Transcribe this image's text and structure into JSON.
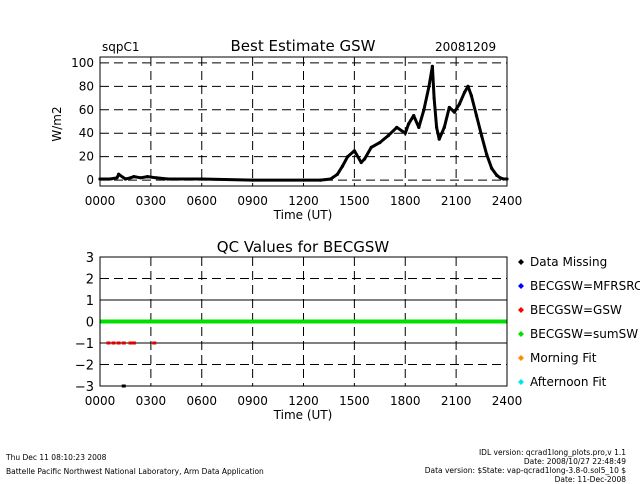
{
  "header": {
    "site": "sqpC1",
    "title": "Best Estimate GSW",
    "date": "20081209"
  },
  "chart_data": [
    {
      "type": "line",
      "title": "Best Estimate GSW",
      "xlabel": "Time (UT)",
      "ylabel": "W/m2",
      "xlim": [
        0,
        2400
      ],
      "ylim": [
        -5,
        105
      ],
      "xticks": [
        "0000",
        "0300",
        "0600",
        "0900",
        "1200",
        "1500",
        "1800",
        "2100",
        "2400"
      ],
      "yticks": [
        "0",
        "20",
        "40",
        "60",
        "80",
        "100"
      ],
      "grid": true,
      "series": [
        {
          "color": "#000000",
          "x": [
            0,
            60,
            100,
            110,
            150,
            180,
            200,
            240,
            280,
            330,
            400,
            600,
            900,
            1200,
            1300,
            1360,
            1400,
            1430,
            1460,
            1500,
            1540,
            1560,
            1600,
            1650,
            1700,
            1750,
            1800,
            1820,
            1850,
            1880,
            1910,
            1940,
            1960,
            1970,
            1985,
            2000,
            2030,
            2060,
            2090,
            2120,
            2150,
            2170,
            2190,
            2220,
            2250,
            2280,
            2310,
            2340,
            2360,
            2380,
            2400
          ],
          "y": [
            1,
            1,
            2,
            5,
            1,
            2,
            3,
            2,
            3,
            2,
            1,
            1,
            0,
            0,
            0,
            1,
            5,
            12,
            20,
            25,
            15,
            18,
            28,
            32,
            38,
            45,
            40,
            48,
            55,
            45,
            60,
            80,
            97,
            70,
            45,
            35,
            45,
            62,
            58,
            65,
            75,
            80,
            72,
            55,
            38,
            22,
            10,
            4,
            2,
            1,
            1
          ]
        }
      ]
    },
    {
      "type": "scatter",
      "title": "QC Values for BECGSW",
      "xlabel": "Time (UT)",
      "xlim": [
        0,
        2400
      ],
      "ylim": [
        -3,
        3
      ],
      "xticks": [
        "0000",
        "0300",
        "0600",
        "0900",
        "1200",
        "1500",
        "1800",
        "2100",
        "2400"
      ],
      "yticks": [
        "3",
        "2",
        "1",
        "0",
        "−1",
        "−2",
        "−3"
      ],
      "grid": true,
      "series": [
        {
          "name": "BECGSW=sumSW",
          "color": "#00e000",
          "x": [
            0,
            2400
          ],
          "y": [
            0,
            0
          ]
        },
        {
          "name": "BECGSW=GSW",
          "color": "#e00000",
          "x": [
            50,
            80,
            110,
            140,
            180,
            200,
            320
          ],
          "y": [
            -1,
            -1,
            -1,
            -1,
            -1,
            -1,
            -1
          ]
        },
        {
          "name": "Data Missing",
          "color": "#000000",
          "x": [
            140
          ],
          "y": [
            -3
          ]
        }
      ],
      "legend": {
        "placement": "right",
        "items": [
          {
            "label": "Data Missing",
            "color": "#000000"
          },
          {
            "label": "BECGSW=MFRSRC",
            "color": "#0000ff"
          },
          {
            "label": "BECGSW=GSW",
            "color": "#ff0000"
          },
          {
            "label": "BECGSW=sumSW",
            "color": "#00e000"
          },
          {
            "label": "Morning Fit",
            "color": "#ff8c00"
          },
          {
            "label": "Afternoon Fit",
            "color": "#00e5e5"
          }
        ]
      }
    }
  ],
  "footer": {
    "timestamp": "Thu Dec 11 08:10:23 2008",
    "lab": "Battelle Pacific Northwest National Laboratory, Arm Data Application",
    "idl_version": "IDL version: qcrad1long_plots.pro,v 1.1",
    "idl_date": "Date: 2008/10/27 22:48:49",
    "data_version": "Data version: $State: vap-qcrad1long-3.8-0.sol5_10 $",
    "data_date": "Date: 11-Dec-2008"
  }
}
